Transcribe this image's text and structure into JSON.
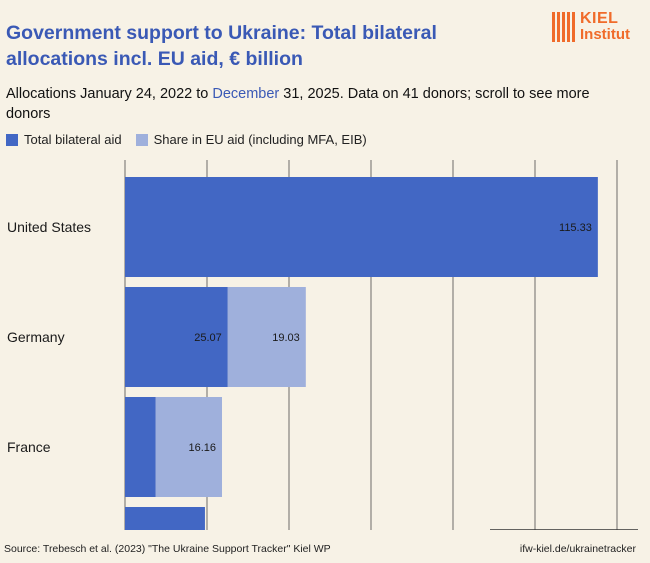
{
  "header": {
    "title": "Government support to Ukraine: Total bilateral allocations incl. EU aid, € billion",
    "subtitle_part1": "Allocations January 24, 2022 to ",
    "subtitle_highlight": "December",
    "subtitle_part2": " 31, 2025. Data on 41 donors; scroll to see more donors"
  },
  "logo": {
    "line1": "KIEL",
    "line2": "Institut",
    "color": "#f06b2a"
  },
  "legend": {
    "items": [
      {
        "label": "Total bilateral aid",
        "color": "#4267c4"
      },
      {
        "label": "Share in EU aid (including MFA, EIB)",
        "color": "#9fb0dc"
      }
    ]
  },
  "chart_data": {
    "type": "bar",
    "orientation": "horizontal",
    "stacked": true,
    "title": "Government support to Ukraine: Total bilateral allocations incl. EU aid, € billion",
    "categories": [
      "United States",
      "Germany",
      "France",
      ""
    ],
    "series": [
      {
        "name": "Total bilateral aid",
        "color": "#4267c4",
        "values": [
          115.33,
          25.07,
          7.5,
          19.5
        ],
        "labels": [
          "115.33",
          "25.07",
          "",
          ""
        ]
      },
      {
        "name": "Share in EU aid (including MFA, EIB)",
        "color": "#9fb0dc",
        "values": [
          0,
          19.03,
          16.16,
          0
        ],
        "labels": [
          "",
          "19.03",
          "16.16",
          ""
        ]
      }
    ],
    "xlim": [
      0,
      130
    ],
    "grid": true,
    "gridline_values": [
      20,
      40,
      60,
      80,
      100,
      120
    ],
    "legend_position": "top-left"
  },
  "footer": {
    "source": "Source: Trebesch et al. (2023) \"The Ukraine Support Tracker\" Kiel WP",
    "url": "ifw-kiel.de/ukrainetracker"
  }
}
